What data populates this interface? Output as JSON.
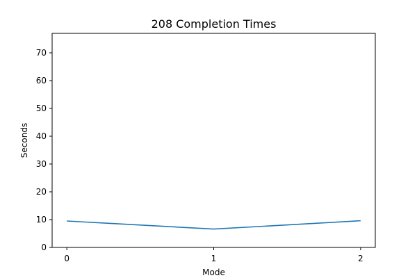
{
  "chart_data": {
    "type": "line",
    "title": "208 Completion Times",
    "xlabel": "Mode",
    "ylabel": "Seconds",
    "x": [
      0,
      1,
      2
    ],
    "xticks": [
      "0",
      "1",
      "2"
    ],
    "series": [
      {
        "values": [
          9.5,
          6.6,
          9.6
        ],
        "color": "#1f77b4"
      }
    ],
    "xlim": [
      -0.1,
      2.1
    ],
    "ylim": [
      0,
      77
    ],
    "yticks": [
      0,
      10,
      20,
      30,
      40,
      50,
      60,
      70
    ],
    "grid": false,
    "legend": "none"
  }
}
